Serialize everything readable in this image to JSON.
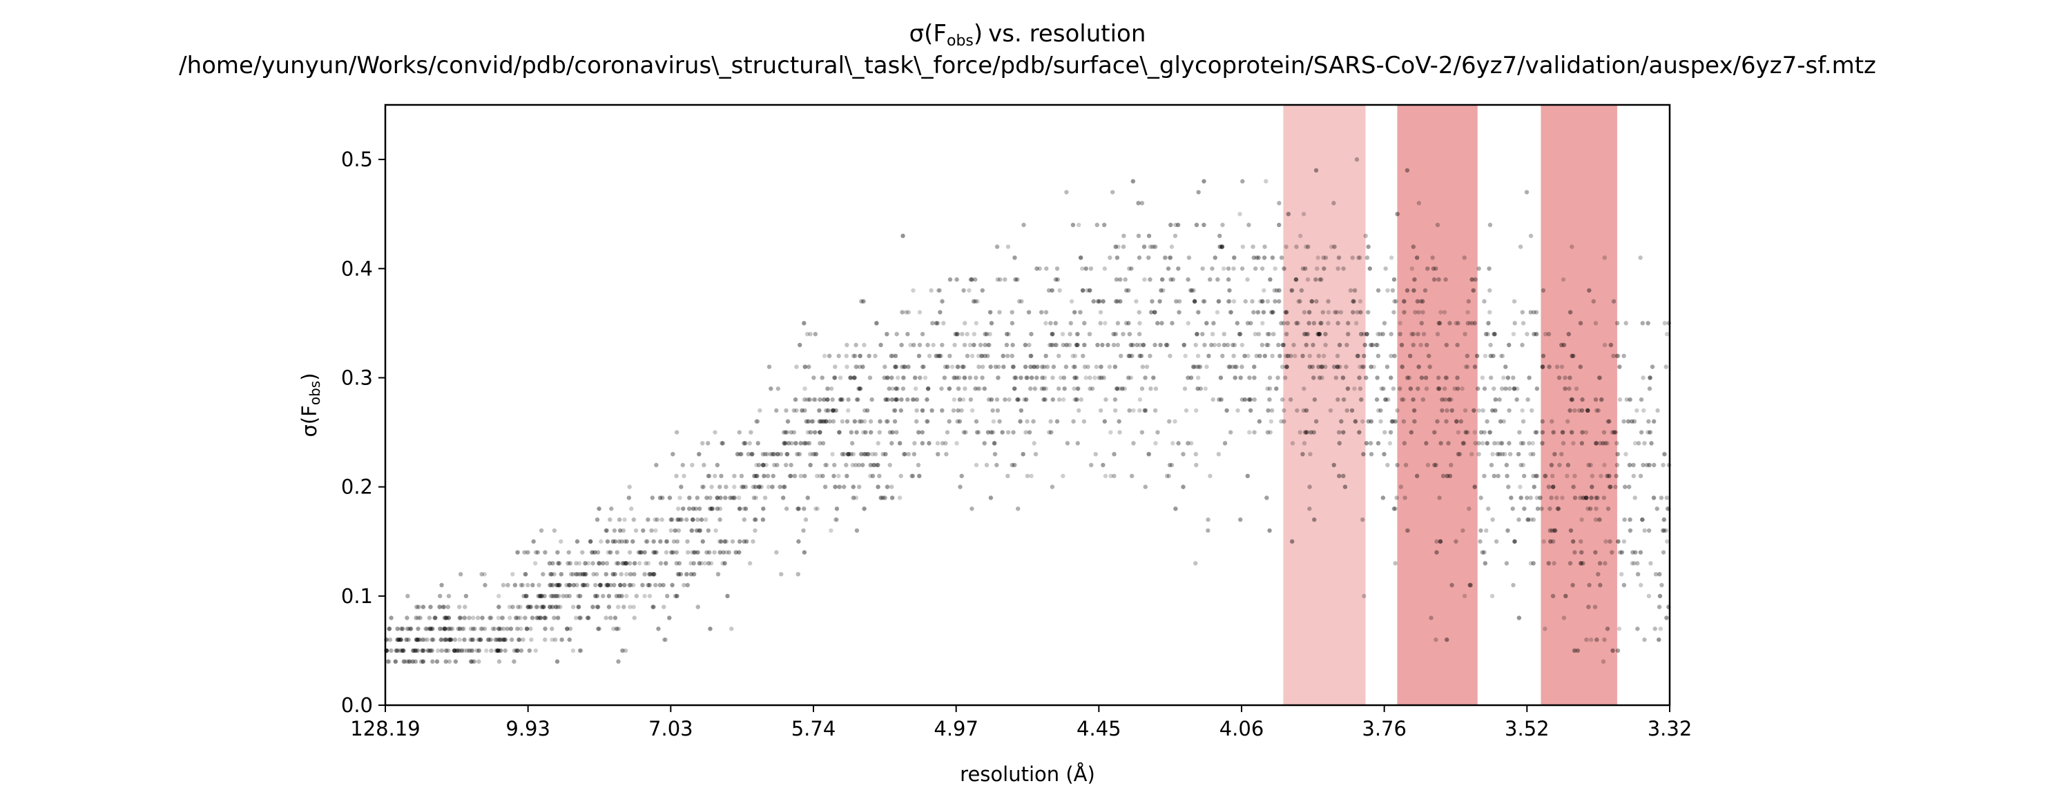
{
  "chart_data": {
    "type": "scatter",
    "title": {
      "line1": "vs. resolution",
      "line1_symbol": "σ(F",
      "line1_subscript": "obs",
      "line1_close": ")",
      "line2": "/home/yunyun/Works/convid/pdb/coronavirus\\_structural\\_task\\_force/pdb/surface\\_glycoprotein/SARS-CoV-2/6yz7/validation/auspex/6yz7-sf.mtz"
    },
    "xlabel": "resolution (Å)",
    "ylabel": {
      "symbol": "σ(F",
      "subscript": "obs",
      "close": ")"
    },
    "x_tick_labels": [
      "128.19",
      "9.93",
      "7.03",
      "5.74",
      "4.97",
      "4.45",
      "4.06",
      "3.76",
      "3.52",
      "3.32"
    ],
    "x_axis_scale": "1/d^2",
    "x_range_resolution": [
      128.19,
      3.32
    ],
    "ylim": [
      0.0,
      0.55
    ],
    "y_ticks": [
      0.0,
      0.1,
      0.2,
      0.3,
      0.4,
      0.5
    ],
    "y_tick_labels": [
      "0.0",
      "0.1",
      "0.2",
      "0.3",
      "0.4",
      "0.5"
    ],
    "grid": false,
    "legend": "none",
    "point_color": "#000000",
    "band_color": "#d94343",
    "highlight_bands": [
      {
        "from_resolution": 3.97,
        "to_resolution": 3.8,
        "opacity": 0.3
      },
      {
        "from_resolution": 3.74,
        "to_resolution": 3.6,
        "opacity": 0.48
      },
      {
        "from_resolution": 3.5,
        "to_resolution": 3.39,
        "opacity": 0.48
      }
    ],
    "series": [
      {
        "name": "",
        "sigma_trend": [
          {
            "resolution": 128.19,
            "sigma": 0.05
          },
          {
            "resolution": 11.0,
            "sigma": 0.07
          },
          {
            "resolution": 9.93,
            "sigma": 0.09
          },
          {
            "resolution": 7.03,
            "sigma": 0.14
          },
          {
            "resolution": 5.74,
            "sigma": 0.25
          },
          {
            "resolution": 4.97,
            "sigma": 0.3
          },
          {
            "resolution": 4.45,
            "sigma": 0.33
          },
          {
            "resolution": 4.06,
            "sigma": 0.34
          },
          {
            "resolution": 3.88,
            "sigma": 0.33
          },
          {
            "resolution": 3.76,
            "sigma": 0.31
          },
          {
            "resolution": 3.62,
            "sigma": 0.27
          },
          {
            "resolution": 3.52,
            "sigma": 0.24
          },
          {
            "resolution": 3.42,
            "sigma": 0.21
          },
          {
            "resolution": 3.32,
            "sigma": 0.17
          }
        ]
      }
    ]
  }
}
